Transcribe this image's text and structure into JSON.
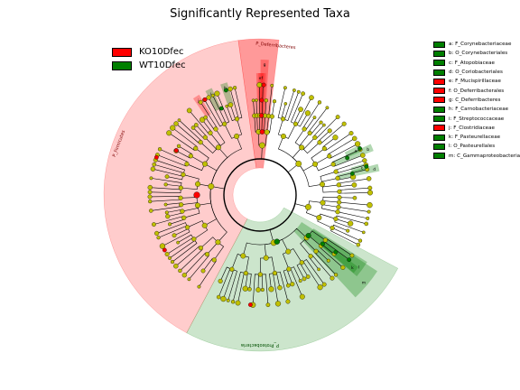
{
  "title": "Significantly Represented Taxa",
  "colors": {
    "KO10Dfec": "#ff0000",
    "WT10Dfec": "#007f00",
    "none": "#c0c000"
  },
  "group_legend": [
    {
      "label": "KO10Dfec",
      "color": "#ff0000"
    },
    {
      "label": "WT10Dfec",
      "color": "#007f00"
    }
  ],
  "chart_data": {
    "type": "cladogram",
    "title": "Significantly Represented Taxa",
    "groups": [
      "KO10Dfec",
      "WT10Dfec"
    ],
    "clades": [
      {
        "label": "P_Firmicutes",
        "group": "KO10Dfec"
      },
      {
        "label": "P_Deferribacteres",
        "group": "KO10Dfec"
      },
      {
        "label": "P_Proteobacteria",
        "group": "WT10Dfec"
      }
    ],
    "biomarkers": [
      {
        "key": "a",
        "taxon": "F_Corynebacteriaceae",
        "group": "WT10Dfec"
      },
      {
        "key": "b",
        "taxon": "O_Corynebacteriales",
        "group": "WT10Dfec"
      },
      {
        "key": "c",
        "taxon": "F_Atopobiaceae",
        "group": "WT10Dfec"
      },
      {
        "key": "d",
        "taxon": "O_Coriobacteriales",
        "group": "WT10Dfec"
      },
      {
        "key": "e",
        "taxon": "F_Mucispirillaceae",
        "group": "KO10Dfec"
      },
      {
        "key": "f",
        "taxon": "O_Deferribacterales",
        "group": "KO10Dfec"
      },
      {
        "key": "g",
        "taxon": "C_Deferribacteres",
        "group": "KO10Dfec"
      },
      {
        "key": "h",
        "taxon": "F_Carnobacteriaceae",
        "group": "WT10Dfec"
      },
      {
        "key": "i",
        "taxon": "F_Streptococcaceae",
        "group": "WT10Dfec"
      },
      {
        "key": "j",
        "taxon": "F_Clostridiaceae",
        "group": "KO10Dfec"
      },
      {
        "key": "k",
        "taxon": "F_Pasteurellaceae",
        "group": "WT10Dfec"
      },
      {
        "key": "l",
        "taxon": "O_Pasteurellales",
        "group": "WT10Dfec"
      },
      {
        "key": "m",
        "taxon": "C_Gammaproteobacteria",
        "group": "WT10Dfec"
      }
    ],
    "legend_placement": "top-left and right"
  }
}
